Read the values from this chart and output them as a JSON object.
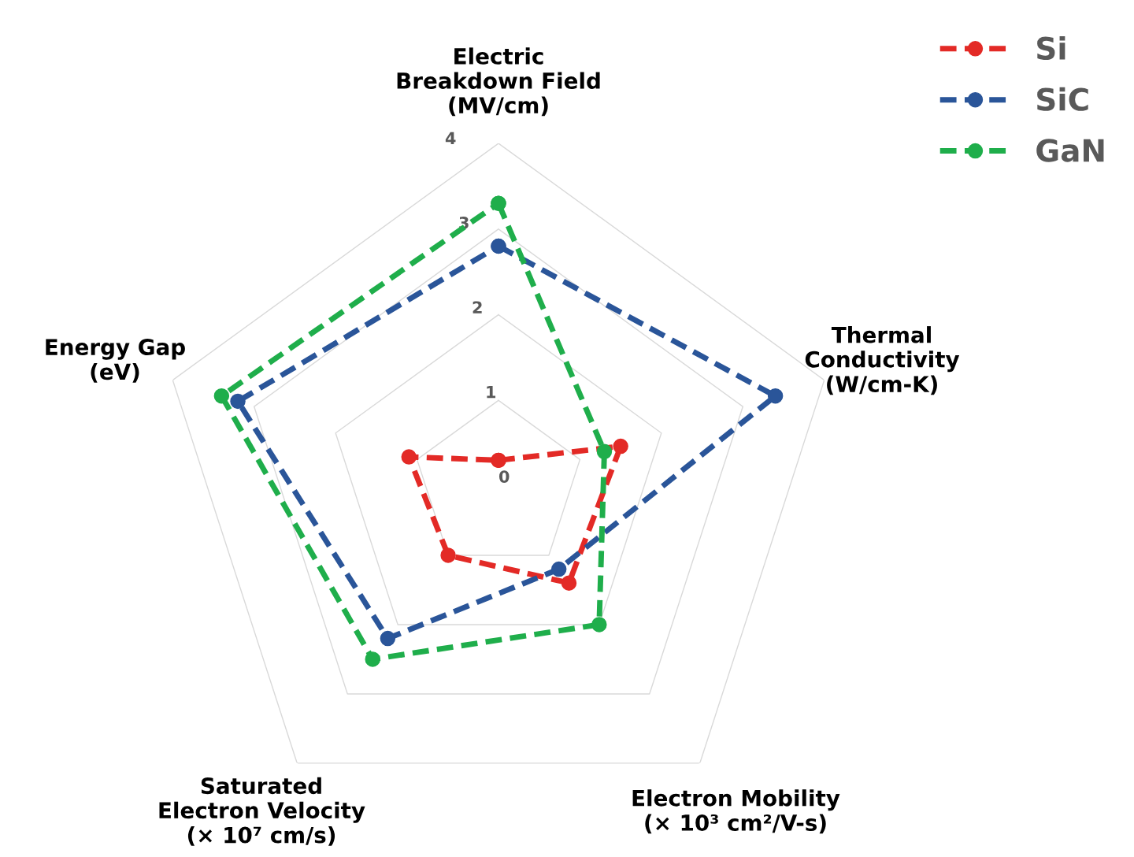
{
  "chart_data": {
    "type": "radar",
    "categories": [
      "Electric\nBreakdown Field\n(MV/cm)",
      "Thermal\nConductivity\n(W/cm-K)",
      "Electron Mobility\n(× 10³ cm²/V-s)",
      "Saturated\nElectron Velocity\n(× 10⁷ cm/s)",
      "Energy Gap\n(eV)"
    ],
    "series": [
      {
        "name": "Si",
        "color": "#e32a26",
        "values": [
          0.3,
          1.5,
          1.4,
          1.0,
          1.1
        ]
      },
      {
        "name": "SiC",
        "color": "#2a5599",
        "values": [
          2.8,
          3.4,
          1.2,
          2.2,
          3.2
        ]
      },
      {
        "name": "GaN",
        "color": "#1fae4b",
        "values": [
          3.3,
          1.3,
          2.0,
          2.5,
          3.4
        ]
      }
    ],
    "ylim": [
      0,
      4
    ],
    "yticks": [
      0,
      1,
      2,
      3,
      4
    ],
    "grid": true,
    "legend": "top right",
    "marker": "circle",
    "line_style": "dashed"
  }
}
